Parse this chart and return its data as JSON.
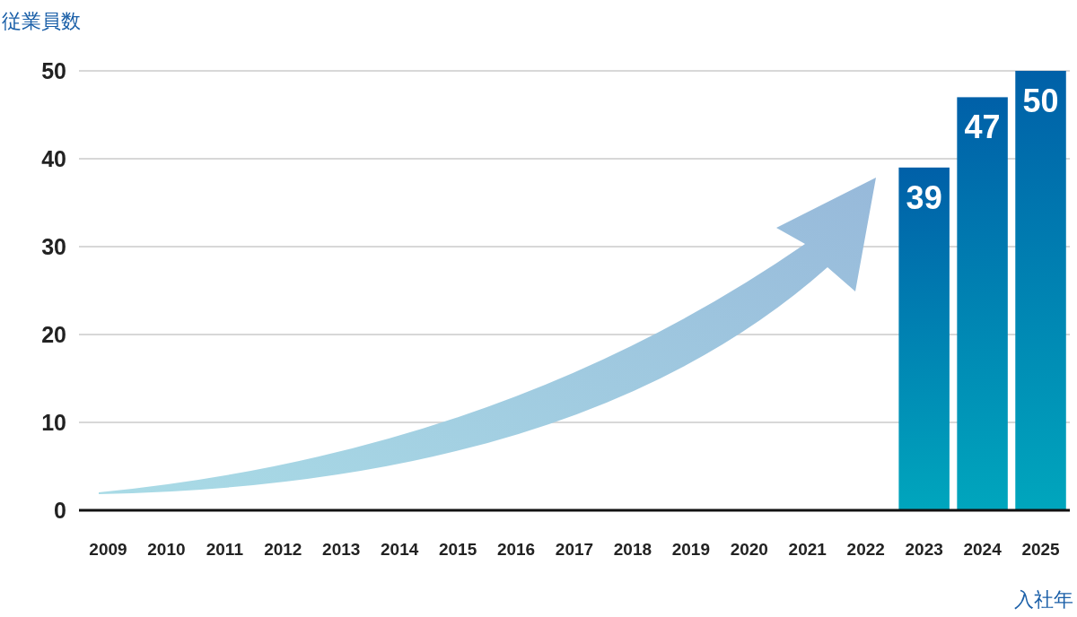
{
  "chart_data": {
    "type": "bar",
    "ylabel": "従業員数",
    "xlabel": "入社年",
    "categories": [
      "2009",
      "2010",
      "2011",
      "2012",
      "2013",
      "2014",
      "2015",
      "2016",
      "2017",
      "2018",
      "2019",
      "2020",
      "2021",
      "2022",
      "2023",
      "2024",
      "2025"
    ],
    "values": [
      null,
      null,
      null,
      null,
      null,
      null,
      null,
      null,
      null,
      null,
      null,
      null,
      null,
      null,
      39,
      47,
      50
    ],
    "color": "#0060a8",
    "ylim": [
      0,
      50
    ],
    "yticks": [
      0,
      10,
      20,
      30,
      40,
      50
    ],
    "grid": "y",
    "data_labels": true
  }
}
